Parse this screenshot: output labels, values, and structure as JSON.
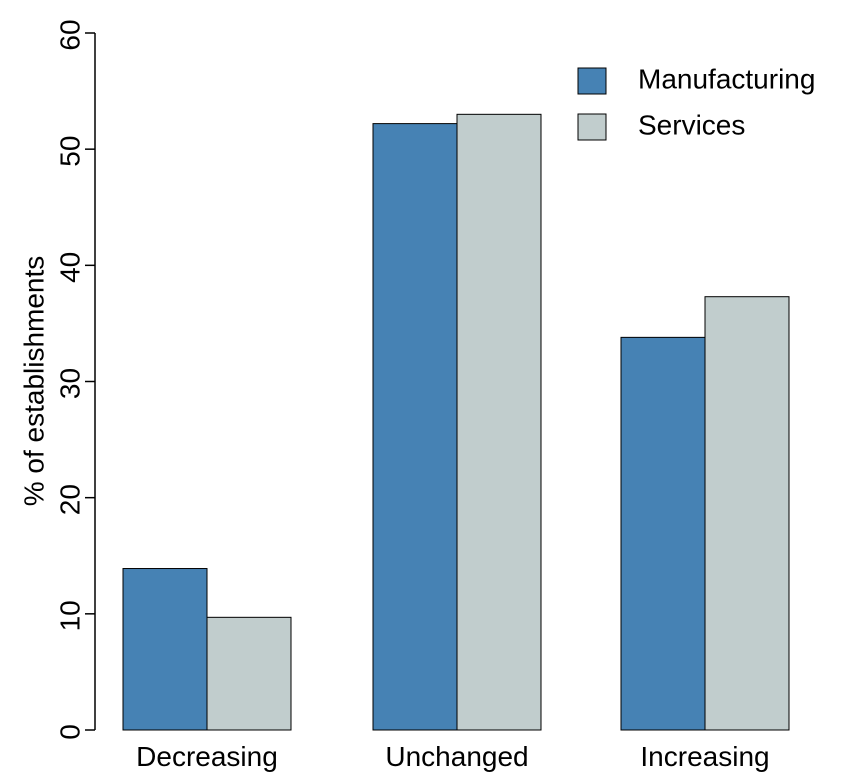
{
  "chart_data": {
    "type": "bar",
    "categories": [
      "Decreasing",
      "Unchanged",
      "Increasing"
    ],
    "series": [
      {
        "name": "Manufacturing",
        "color": "#4682B4",
        "values": [
          13.9,
          52.2,
          33.8
        ]
      },
      {
        "name": "Services",
        "color": "#C1CDCD",
        "values": [
          9.7,
          53.0,
          37.3
        ]
      }
    ],
    "title": "",
    "xlabel": "",
    "ylabel": "% of establishments",
    "ylim": [
      0,
      60
    ],
    "yticks": [
      "0",
      "10",
      "20",
      "30",
      "40",
      "50",
      "60"
    ],
    "grid": false,
    "legend_position": "top-right"
  }
}
